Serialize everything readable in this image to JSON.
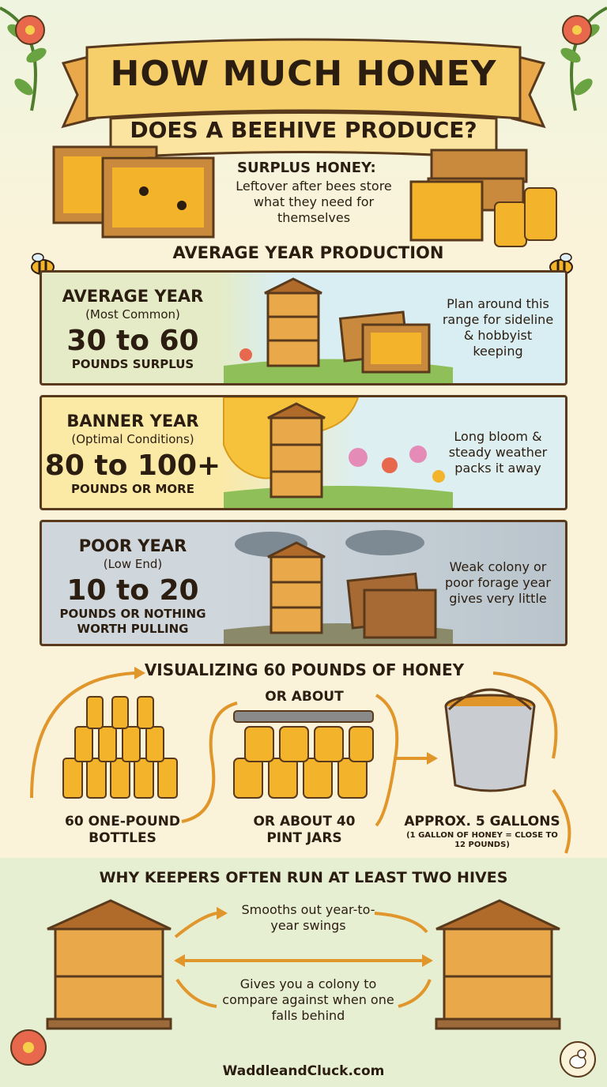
{
  "header": {
    "title_line1": "HOW MUCH HONEY",
    "title_line2": "DOES A BEEHIVE PRODUCE?"
  },
  "surplus": {
    "heading": "SURPLUS HONEY:",
    "description": "Leftover after bees store what they need for themselves"
  },
  "average_section_title": "AVERAGE YEAR PRODUCTION",
  "years": [
    {
      "name": "AVERAGE YEAR",
      "subtitle": "(Most Common)",
      "amount": "30 to 60",
      "unit": "POUNDS SURPLUS",
      "note": "Plan around this range for sideline & hobbyist keeping"
    },
    {
      "name": "BANNER YEAR",
      "subtitle": "(Optimal Conditions)",
      "amount": "80 to 100+",
      "unit": "POUNDS OR MORE",
      "note": "Long bloom & steady weather packs it away"
    },
    {
      "name": "POOR YEAR",
      "subtitle": "(Low End)",
      "amount": "10 to 20",
      "unit": "POUNDS OR NOTHING WORTH PULLING",
      "note": "Weak colony or poor forage year gives very little"
    }
  ],
  "visualizing": {
    "title": "VISUALIZING 60 POUNDS OF HONEY",
    "or_about_top": "OR ABOUT",
    "bottles_label": "60 ONE-POUND BOTTLES",
    "jars_label": "OR ABOUT 40 PINT JARS",
    "gallons_label": "APPROX. 5 GALLONS",
    "gallons_note": "(1 GALLON OF HONEY = CLOSE TO 12 POUNDS)"
  },
  "two_hives": {
    "title": "WHY KEEPERS OFTEN RUN AT LEAST TWO HIVES",
    "reason1": "Smooths out year-to-year swings",
    "reason2": "Gives you a colony to compare against when one falls behind"
  },
  "footer": {
    "website": "WaddleandCluck.com"
  },
  "colors": {
    "honey": "#f3b42c",
    "wood": "#c98a3d",
    "outline": "#5a3a1c",
    "banner": "#f6cf6a",
    "leaf": "#5f9a3c"
  }
}
